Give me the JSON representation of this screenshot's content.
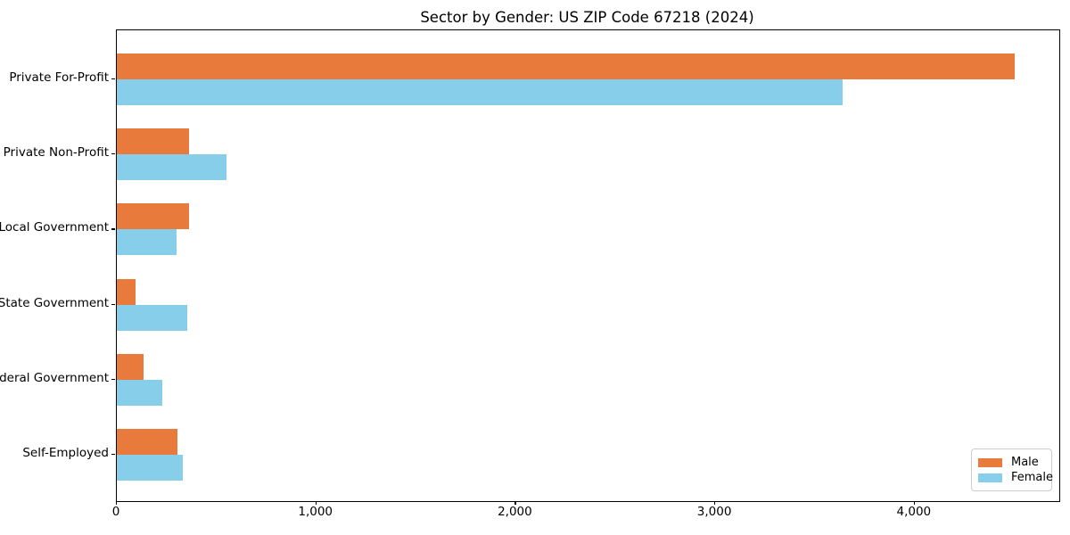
{
  "title": "Sector by Gender: US ZIP Code 67218 (2024)",
  "colors": {
    "male": "#E87A3C",
    "female": "#87CEEB",
    "axis": "#000000",
    "legend_border": "#cccccc",
    "background": "#ffffff"
  },
  "legend": {
    "items": [
      {
        "label": "Male",
        "color": "#E87A3C"
      },
      {
        "label": "Female",
        "color": "#87CEEB"
      }
    ]
  },
  "chart_data": {
    "type": "bar",
    "orientation": "horizontal",
    "title": "Sector by Gender: US ZIP Code 67218 (2024)",
    "categories": [
      "Private For-Profit",
      "Private Non-Profit",
      "Local Government",
      "State Government",
      "Federal Government",
      "Self-Employed"
    ],
    "series": [
      {
        "name": "Male",
        "color": "#E87A3C",
        "values": [
          4500,
          360,
          360,
          95,
          135,
          305
        ]
      },
      {
        "name": "Female",
        "color": "#87CEEB",
        "values": [
          3640,
          550,
          300,
          355,
          230,
          330
        ]
      }
    ],
    "xlabel": "",
    "ylabel": "",
    "xlim": [
      0,
      4725
    ],
    "xticks": [
      0,
      1000,
      2000,
      3000,
      4000
    ],
    "xtick_labels": [
      "0",
      "1,000",
      "2,000",
      "3,000",
      "4,000"
    ],
    "grid": false,
    "legend_position": "lower right"
  }
}
